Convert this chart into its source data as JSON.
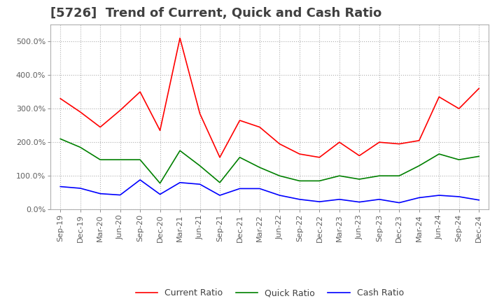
{
  "title": "[5726]  Trend of Current, Quick and Cash Ratio",
  "title_color": "#404040",
  "background_color": "#ffffff",
  "grid_color": "#b0b0b0",
  "ylim": [
    0.0,
    550.0
  ],
  "yticks": [
    0,
    100,
    200,
    300,
    400,
    500
  ],
  "x_labels": [
    "Sep-19",
    "Dec-19",
    "Mar-20",
    "Jun-20",
    "Sep-20",
    "Dec-20",
    "Mar-21",
    "Jun-21",
    "Sep-21",
    "Dec-21",
    "Mar-22",
    "Jun-22",
    "Sep-22",
    "Dec-22",
    "Mar-23",
    "Jun-23",
    "Sep-23",
    "Dec-23",
    "Mar-24",
    "Jun-24",
    "Sep-24",
    "Dec-24"
  ],
  "current_ratio": [
    330,
    290,
    245,
    295,
    350,
    235,
    510,
    285,
    155,
    265,
    245,
    195,
    165,
    155,
    200,
    160,
    200,
    195,
    205,
    335,
    300,
    360
  ],
  "quick_ratio": [
    210,
    185,
    148,
    148,
    148,
    78,
    175,
    130,
    80,
    155,
    125,
    100,
    85,
    85,
    100,
    90,
    100,
    100,
    130,
    165,
    148,
    158
  ],
  "cash_ratio": [
    68,
    63,
    47,
    43,
    88,
    45,
    80,
    75,
    42,
    62,
    62,
    42,
    30,
    23,
    30,
    22,
    30,
    20,
    35,
    42,
    38,
    28
  ],
  "line_colors": [
    "#ff0000",
    "#008000",
    "#0000ff"
  ],
  "legend_labels": [
    "Current Ratio",
    "Quick Ratio",
    "Cash Ratio"
  ],
  "legend_color": "#404040",
  "tick_label_color": "#606060",
  "tick_label_fontsize": 8,
  "title_fontsize": 13
}
